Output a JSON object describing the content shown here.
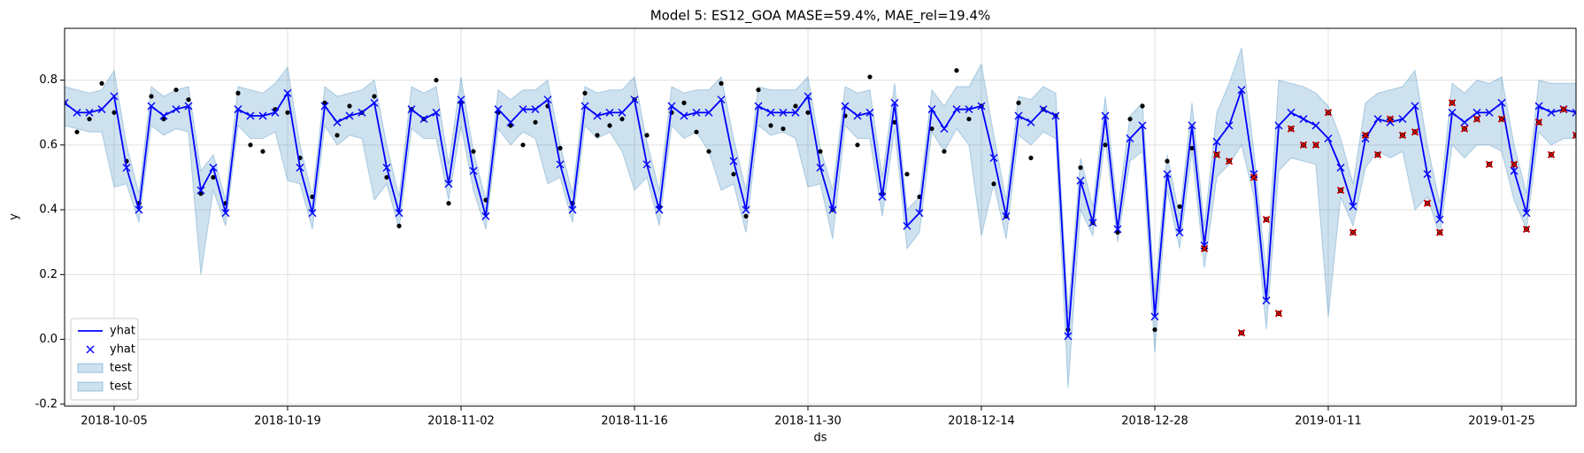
{
  "chart_data": {
    "type": "line",
    "title": "Model 5: ES12_GOA MASE=59.4%, MAE_rel=19.4%",
    "x_label": "ds",
    "y_label": "y",
    "x": [
      "2018-10-01",
      "2018-10-02",
      "2018-10-03",
      "2018-10-04",
      "2018-10-05",
      "2018-10-06",
      "2018-10-07",
      "2018-10-08",
      "2018-10-09",
      "2018-10-10",
      "2018-10-11",
      "2018-10-12",
      "2018-10-13",
      "2018-10-14",
      "2018-10-15",
      "2018-10-16",
      "2018-10-17",
      "2018-10-18",
      "2018-10-19",
      "2018-10-20",
      "2018-10-21",
      "2018-10-22",
      "2018-10-23",
      "2018-10-24",
      "2018-10-25",
      "2018-10-26",
      "2018-10-27",
      "2018-10-28",
      "2018-10-29",
      "2018-10-30",
      "2018-10-31",
      "2018-11-01",
      "2018-11-02",
      "2018-11-03",
      "2018-11-04",
      "2018-11-05",
      "2018-11-06",
      "2018-11-07",
      "2018-11-08",
      "2018-11-09",
      "2018-11-10",
      "2018-11-11",
      "2018-11-12",
      "2018-11-13",
      "2018-11-14",
      "2018-11-15",
      "2018-11-16",
      "2018-11-17",
      "2018-11-18",
      "2018-11-19",
      "2018-11-20",
      "2018-11-21",
      "2018-11-22",
      "2018-11-23",
      "2018-11-24",
      "2018-11-25",
      "2018-11-26",
      "2018-11-27",
      "2018-11-28",
      "2018-11-29",
      "2018-11-30",
      "2018-12-01",
      "2018-12-02",
      "2018-12-03",
      "2018-12-04",
      "2018-12-05",
      "2018-12-06",
      "2018-12-07",
      "2018-12-08",
      "2018-12-09",
      "2018-12-10",
      "2018-12-11",
      "2018-12-12",
      "2018-12-13",
      "2018-12-14",
      "2018-12-15",
      "2018-12-16",
      "2018-12-17",
      "2018-12-18",
      "2018-12-19",
      "2018-12-20",
      "2018-12-21",
      "2018-12-22",
      "2018-12-23",
      "2018-12-24",
      "2018-12-25",
      "2018-12-26",
      "2018-12-27",
      "2018-12-28",
      "2018-12-29",
      "2018-12-30",
      "2018-12-31",
      "2019-01-01",
      "2019-01-02",
      "2019-01-03",
      "2019-01-04",
      "2019-01-05",
      "2019-01-06",
      "2019-01-07",
      "2019-01-08",
      "2019-01-09",
      "2019-01-10",
      "2019-01-11",
      "2019-01-12",
      "2019-01-13",
      "2019-01-14",
      "2019-01-15",
      "2019-01-16",
      "2019-01-17",
      "2019-01-18",
      "2019-01-19",
      "2019-01-20",
      "2019-01-21",
      "2019-01-22",
      "2019-01-23",
      "2019-01-24",
      "2019-01-25",
      "2019-01-26",
      "2019-01-27",
      "2019-01-28",
      "2019-01-29",
      "2019-01-30",
      "2019-01-31"
    ],
    "yhat": [
      0.73,
      0.7,
      0.7,
      0.71,
      0.75,
      0.53,
      0.4,
      0.72,
      0.69,
      0.71,
      0.72,
      0.46,
      0.53,
      0.39,
      0.71,
      0.69,
      0.69,
      0.7,
      0.76,
      0.53,
      0.39,
      0.72,
      0.67,
      0.69,
      0.7,
      0.73,
      0.53,
      0.39,
      0.71,
      0.68,
      0.7,
      0.48,
      0.74,
      0.52,
      0.38,
      0.71,
      0.67,
      0.71,
      0.71,
      0.74,
      0.54,
      0.4,
      0.72,
      0.69,
      0.7,
      0.7,
      0.74,
      0.54,
      0.4,
      0.72,
      0.69,
      0.7,
      0.7,
      0.74,
      0.55,
      0.4,
      0.72,
      0.7,
      0.7,
      0.7,
      0.75,
      0.53,
      0.4,
      0.72,
      0.69,
      0.7,
      0.44,
      0.73,
      0.35,
      0.39,
      0.71,
      0.65,
      0.71,
      0.71,
      0.72,
      0.56,
      0.38,
      0.69,
      0.67,
      0.71,
      0.69,
      0.01,
      0.49,
      0.36,
      0.69,
      0.34,
      0.62,
      0.66,
      0.07,
      0.51,
      0.33,
      0.66,
      0.29,
      0.61,
      0.66,
      0.77,
      0.51,
      0.12,
      0.66,
      0.7,
      0.68,
      0.66,
      0.62,
      0.53,
      0.41,
      0.62,
      0.68,
      0.67,
      0.68,
      0.72,
      0.51,
      0.37,
      0.7,
      0.67,
      0.7,
      0.7,
      0.73,
      0.52,
      0.39,
      0.72,
      0.7,
      0.71,
      0.7
    ],
    "upper": [
      0.78,
      0.77,
      0.76,
      0.77,
      0.83,
      0.6,
      0.45,
      0.78,
      0.75,
      0.77,
      0.78,
      0.52,
      0.57,
      0.43,
      0.78,
      0.77,
      0.76,
      0.79,
      0.84,
      0.6,
      0.44,
      0.78,
      0.75,
      0.76,
      0.77,
      0.8,
      0.6,
      0.44,
      0.78,
      0.76,
      0.78,
      0.54,
      0.81,
      0.58,
      0.43,
      0.77,
      0.74,
      0.77,
      0.77,
      0.8,
      0.6,
      0.45,
      0.78,
      0.76,
      0.77,
      0.77,
      0.81,
      0.61,
      0.46,
      0.78,
      0.76,
      0.77,
      0.77,
      0.81,
      0.62,
      0.46,
      0.78,
      0.77,
      0.77,
      0.77,
      0.81,
      0.59,
      0.46,
      0.78,
      0.76,
      0.77,
      0.5,
      0.79,
      0.4,
      0.44,
      0.77,
      0.72,
      0.78,
      0.78,
      0.85,
      0.63,
      0.43,
      0.75,
      0.74,
      0.78,
      0.76,
      0.08,
      0.56,
      0.41,
      0.75,
      0.4,
      0.69,
      0.73,
      0.14,
      0.57,
      0.38,
      0.73,
      0.35,
      0.7,
      0.79,
      0.9,
      0.58,
      0.2,
      0.8,
      0.79,
      0.78,
      0.76,
      0.72,
      0.62,
      0.48,
      0.73,
      0.76,
      0.77,
      0.78,
      0.83,
      0.6,
      0.42,
      0.79,
      0.76,
      0.8,
      0.79,
      0.81,
      0.6,
      0.45,
      0.8,
      0.79,
      0.79,
      0.79
    ],
    "lower": [
      0.66,
      0.65,
      0.64,
      0.64,
      0.47,
      0.48,
      0.36,
      0.66,
      0.63,
      0.65,
      0.64,
      0.2,
      0.46,
      0.35,
      0.66,
      0.62,
      0.62,
      0.64,
      0.49,
      0.48,
      0.34,
      0.66,
      0.6,
      0.63,
      0.62,
      0.43,
      0.48,
      0.34,
      0.65,
      0.62,
      0.62,
      0.43,
      0.66,
      0.46,
      0.34,
      0.65,
      0.6,
      0.64,
      0.62,
      0.48,
      0.5,
      0.36,
      0.66,
      0.62,
      0.64,
      0.58,
      0.46,
      0.5,
      0.35,
      0.66,
      0.62,
      0.64,
      0.58,
      0.46,
      0.48,
      0.33,
      0.66,
      0.63,
      0.64,
      0.62,
      0.47,
      0.48,
      0.31,
      0.66,
      0.62,
      0.62,
      0.38,
      0.65,
      0.28,
      0.33,
      0.64,
      0.58,
      0.65,
      0.6,
      0.32,
      0.48,
      0.31,
      0.63,
      0.6,
      0.64,
      0.62,
      -0.15,
      0.4,
      0.32,
      0.62,
      0.3,
      0.55,
      0.58,
      -0.04,
      0.46,
      0.28,
      0.58,
      0.22,
      0.5,
      0.54,
      0.6,
      0.44,
      0.03,
      0.52,
      0.56,
      0.55,
      0.54,
      0.07,
      0.44,
      0.35,
      0.53,
      0.58,
      0.56,
      0.58,
      0.4,
      0.44,
      0.32,
      0.6,
      0.56,
      0.6,
      0.6,
      0.58,
      0.43,
      0.34,
      0.64,
      0.6,
      0.62,
      0.62
    ],
    "actual": [
      0.73,
      0.64,
      0.68,
      0.79,
      0.7,
      0.55,
      0.42,
      0.75,
      0.68,
      0.77,
      0.74,
      0.45,
      0.5,
      0.42,
      0.76,
      0.6,
      0.58,
      0.71,
      0.7,
      0.56,
      0.44,
      0.73,
      0.63,
      0.72,
      0.7,
      0.75,
      0.5,
      0.35,
      0.71,
      0.68,
      0.8,
      0.42,
      0.73,
      0.58,
      0.43,
      0.7,
      0.66,
      0.6,
      0.67,
      0.72,
      0.59,
      0.42,
      0.76,
      0.63,
      0.66,
      0.68,
      0.74,
      0.63,
      0.41,
      0.7,
      0.73,
      0.64,
      0.58,
      0.79,
      0.51,
      0.38,
      0.77,
      0.66,
      0.65,
      0.72,
      0.7,
      0.58,
      0.4,
      0.69,
      0.6,
      0.81,
      0.45,
      0.67,
      0.51,
      0.44,
      0.65,
      0.58,
      0.83,
      0.68,
      0.72,
      0.48,
      0.38,
      0.73,
      0.56,
      0.71,
      0.69,
      0.03,
      0.53,
      0.36,
      0.6,
      0.33,
      0.68,
      0.72,
      0.03,
      0.55,
      0.41,
      0.59,
      null,
      null,
      null,
      null,
      null,
      null,
      null,
      null,
      null,
      null,
      null,
      null,
      null,
      null,
      null,
      null,
      null,
      null,
      null,
      null,
      null,
      null,
      null,
      null,
      null,
      null,
      null,
      null,
      null,
      null,
      null
    ],
    "test_actual": [
      null,
      null,
      null,
      null,
      null,
      null,
      null,
      null,
      null,
      null,
      null,
      null,
      null,
      null,
      null,
      null,
      null,
      null,
      null,
      null,
      null,
      null,
      null,
      null,
      null,
      null,
      null,
      null,
      null,
      null,
      null,
      null,
      null,
      null,
      null,
      null,
      null,
      null,
      null,
      null,
      null,
      null,
      null,
      null,
      null,
      null,
      null,
      null,
      null,
      null,
      null,
      null,
      null,
      null,
      null,
      null,
      null,
      null,
      null,
      null,
      null,
      null,
      null,
      null,
      null,
      null,
      null,
      null,
      null,
      null,
      null,
      null,
      null,
      null,
      null,
      null,
      null,
      null,
      null,
      null,
      null,
      null,
      null,
      null,
      null,
      null,
      null,
      null,
      null,
      null,
      null,
      null,
      0.28,
      0.57,
      0.55,
      0.02,
      0.5,
      0.37,
      0.08,
      0.65,
      0.6,
      0.6,
      0.7,
      0.46,
      0.33,
      0.63,
      0.57,
      0.68,
      0.63,
      0.64,
      0.42,
      0.33,
      0.73,
      0.65,
      0.68,
      0.54,
      0.68,
      0.54,
      0.34,
      0.67,
      0.57,
      0.71,
      0.63
    ],
    "line_color": "#0000ff",
    "band_color": "#1f77b4",
    "actual_color": "#000000",
    "test_color": "#cc0000",
    "legend": [
      {
        "name": "yhat",
        "style": "line"
      },
      {
        "name": "yhat",
        "style": "marker"
      },
      {
        "name": "test",
        "style": "band"
      },
      {
        "name": "test",
        "style": "band"
      }
    ],
    "legend_position": "lower left",
    "xlim": [
      "2018-10-01",
      "2019-01-31"
    ],
    "xticks": [
      "2018-10-05",
      "2018-10-19",
      "2018-11-02",
      "2018-11-16",
      "2018-11-30",
      "2018-12-14",
      "2018-12-28",
      "2019-01-11",
      "2019-01-25"
    ],
    "ylim": [
      -0.206,
      0.96
    ],
    "yticks": [
      -0.2,
      {
        "value": 0,
        "label": "0.0"
      },
      0.2,
      0.4,
      0.6,
      0.8
    ],
    "grid": true
  }
}
